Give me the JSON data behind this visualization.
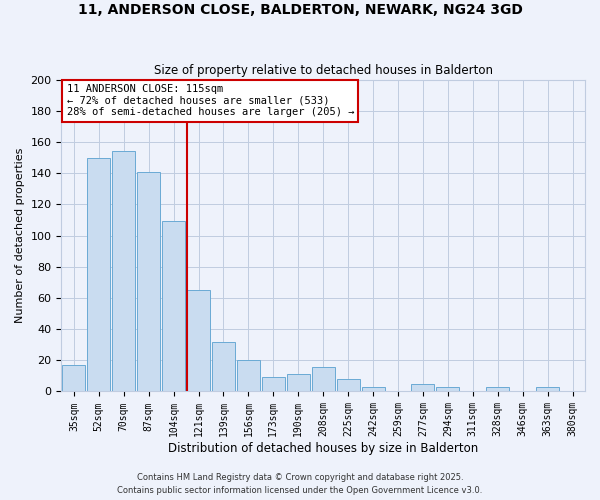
{
  "title": "11, ANDERSON CLOSE, BALDERTON, NEWARK, NG24 3GD",
  "subtitle": "Size of property relative to detached houses in Balderton",
  "xlabel": "Distribution of detached houses by size in Balderton",
  "ylabel": "Number of detached properties",
  "categories": [
    "35sqm",
    "52sqm",
    "70sqm",
    "87sqm",
    "104sqm",
    "121sqm",
    "139sqm",
    "156sqm",
    "173sqm",
    "190sqm",
    "208sqm",
    "225sqm",
    "242sqm",
    "259sqm",
    "277sqm",
    "294sqm",
    "311sqm",
    "328sqm",
    "346sqm",
    "363sqm",
    "380sqm"
  ],
  "values": [
    17,
    150,
    154,
    141,
    109,
    65,
    32,
    20,
    9,
    11,
    16,
    8,
    3,
    0,
    5,
    3,
    0,
    3,
    0,
    3,
    0
  ],
  "bar_color": "#c9dcf0",
  "bar_edge_color": "#6aaad4",
  "background_color": "#eef2fb",
  "grid_color": "#c0cce0",
  "vline_color": "#cc0000",
  "annotation_title": "11 ANDERSON CLOSE: 115sqm",
  "annotation_line1": "← 72% of detached houses are smaller (533)",
  "annotation_line2": "28% of semi-detached houses are larger (205) →",
  "ylim": [
    0,
    200
  ],
  "yticks": [
    0,
    20,
    40,
    60,
    80,
    100,
    120,
    140,
    160,
    180,
    200
  ],
  "footer1": "Contains HM Land Registry data © Crown copyright and database right 2025.",
  "footer2": "Contains public sector information licensed under the Open Government Licence v3.0."
}
